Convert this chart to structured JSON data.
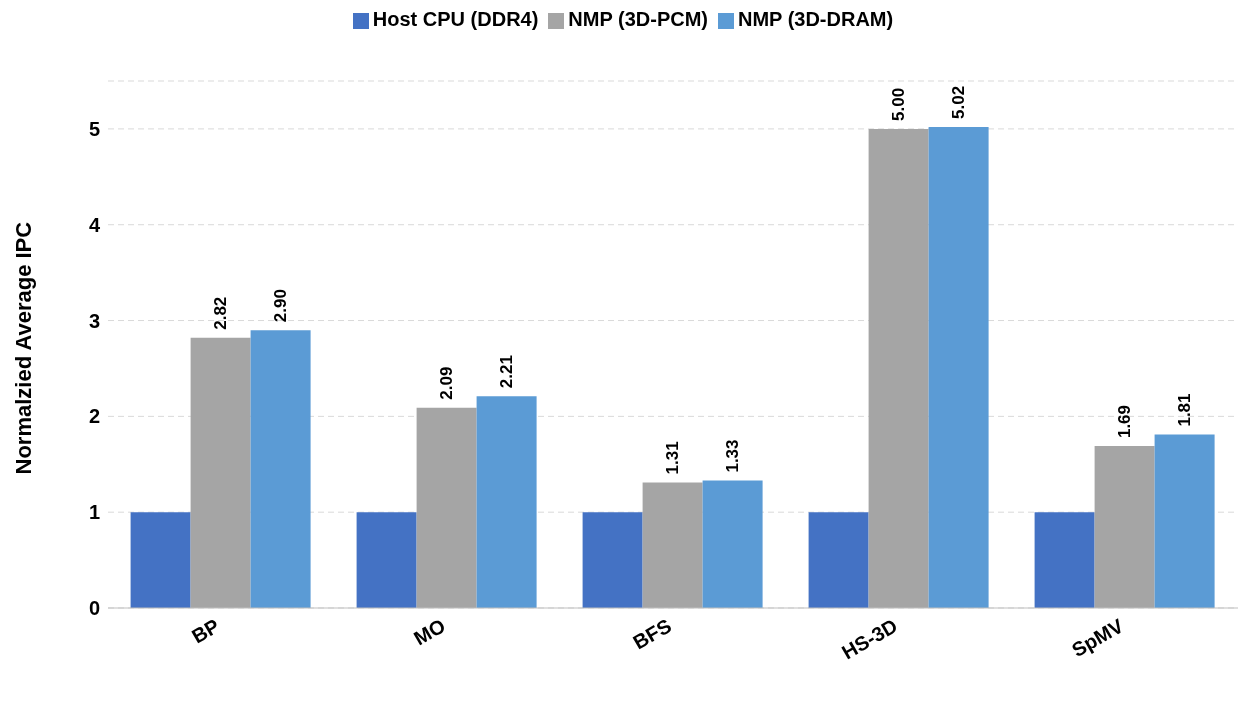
{
  "chart_data": {
    "type": "bar",
    "ylabel": "Normalzied Average IPC",
    "categories": [
      "BP",
      "MO",
      "BFS",
      "HS-3D",
      "SpMV"
    ],
    "series": [
      {
        "name": "Host CPU (DDR4)",
        "color": "#4472c4",
        "values": [
          1,
          1,
          1,
          1,
          1
        ]
      },
      {
        "name": "NMP (3D-PCM)",
        "color": "#a5a5a5",
        "values": [
          2.82,
          2.09,
          1.31,
          5.0,
          1.69
        ],
        "value_labels": [
          "2.82",
          "2.09",
          "1.31",
          "5.00",
          "1.69"
        ]
      },
      {
        "name": "NMP (3D-DRAM)",
        "color": "#5b9bd5",
        "values": [
          2.9,
          2.21,
          1.33,
          5.02,
          1.81
        ],
        "value_labels": [
          "2.90",
          "2.21",
          "1.33",
          "5.02",
          "1.81"
        ]
      }
    ],
    "ylim": [
      0,
      5.5
    ],
    "yticks": [
      0,
      1,
      2,
      3,
      4,
      5
    ],
    "grid": "y",
    "legend": "top"
  }
}
